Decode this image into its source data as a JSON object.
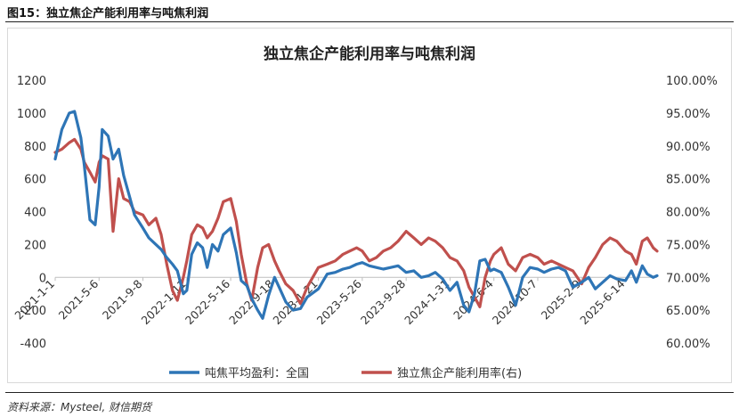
{
  "figure_title": "图15：独立焦企产能利用率与吨焦利润",
  "source_text": "资料来源：Mysteel, 财信期货",
  "chart_data": {
    "type": "line",
    "title": "独立焦企产能利用率与吨焦利润",
    "grid": false,
    "legend_position": "bottom",
    "colors": {
      "profit": "#2e75b6",
      "util": "#c0504d"
    },
    "left_axis": {
      "min": -400,
      "max": 1200,
      "tick_labels": [
        "1200",
        "1000",
        "800",
        "600",
        "400",
        "200",
        "0",
        "-200",
        "-400"
      ],
      "tick_values": [
        1200,
        1000,
        800,
        600,
        400,
        200,
        0,
        -200,
        -400
      ]
    },
    "right_axis": {
      "min": 60,
      "max": 100,
      "tick_labels": [
        "100.00%",
        "95.00%",
        "90.00%",
        "85.00%",
        "80.00%",
        "75.00%",
        "70.00%",
        "65.00%",
        "60.00%"
      ],
      "tick_values": [
        100,
        95,
        90,
        85,
        80,
        75,
        70,
        65,
        60
      ]
    },
    "x_range": [
      "2021-1-1",
      "2025-9-12"
    ],
    "x_tick_labels": [
      "2021-1-1",
      "2021-5-6",
      "2021-9-8",
      "2022-1-11",
      "2022-5-16",
      "2022-9-18",
      "2023-1-21",
      "2023-5-26",
      "2023-9-28",
      "2024-1-31",
      "2024-6-4",
      "2024-10-7",
      "2025-2-9",
      "2025-6-14"
    ],
    "series": [
      {
        "name": "吨焦平均盈利：全国",
        "axis": "left",
        "color": "#2e75b6",
        "x": [
          "2021-1-1",
          "2021-1-20",
          "2021-2-10",
          "2021-2-25",
          "2021-3-15",
          "2021-3-25",
          "2021-4-10",
          "2021-4-25",
          "2021-5-6",
          "2021-5-15",
          "2021-6-1",
          "2021-6-15",
          "2021-7-1",
          "2021-7-15",
          "2021-8-1",
          "2021-8-15",
          "2021-9-8",
          "2021-9-25",
          "2021-10-15",
          "2021-10-30",
          "2021-11-15",
          "2021-12-1",
          "2021-12-15",
          "2022-1-1",
          "2022-1-11",
          "2022-1-25",
          "2022-2-10",
          "2022-2-25",
          "2022-3-10",
          "2022-3-25",
          "2022-4-10",
          "2022-4-25",
          "2022-5-16",
          "2022-6-1",
          "2022-6-15",
          "2022-7-1",
          "2022-7-15",
          "2022-8-1",
          "2022-8-15",
          "2022-9-1",
          "2022-9-18",
          "2022-10-1",
          "2022-10-20",
          "2022-11-10",
          "2022-12-1",
          "2022-12-20",
          "2023-1-21",
          "2023-2-15",
          "2023-3-10",
          "2023-4-1",
          "2023-4-20",
          "2023-5-10",
          "2023-5-26",
          "2023-6-15",
          "2023-7-5",
          "2023-7-25",
          "2023-8-15",
          "2023-9-5",
          "2023-9-28",
          "2023-10-20",
          "2023-11-10",
          "2023-12-1",
          "2023-12-20",
          "2024-1-10",
          "2024-1-31",
          "2024-2-20",
          "2024-3-10",
          "2024-3-25",
          "2024-4-10",
          "2024-4-25",
          "2024-5-10",
          "2024-5-25",
          "2024-6-4",
          "2024-6-25",
          "2024-7-15",
          "2024-8-5",
          "2024-8-25",
          "2024-9-15",
          "2024-10-7",
          "2024-10-25",
          "2024-11-15",
          "2024-12-5",
          "2024-12-25",
          "2025-1-15",
          "2025-2-9",
          "2025-3-1",
          "2025-3-20",
          "2025-4-10",
          "2025-5-1",
          "2025-5-20",
          "2025-6-14",
          "2025-7-1",
          "2025-7-15",
          "2025-8-1",
          "2025-8-15",
          "2025-9-1",
          "2025-9-12"
        ],
        "values": [
          720,
          900,
          1000,
          1010,
          850,
          680,
          350,
          320,
          550,
          900,
          860,
          720,
          780,
          620,
          490,
          380,
          300,
          240,
          200,
          170,
          120,
          80,
          40,
          -100,
          -80,
          140,
          210,
          180,
          60,
          200,
          160,
          260,
          300,
          150,
          -20,
          -50,
          -130,
          -200,
          -250,
          -110,
          0,
          -60,
          -150,
          -200,
          -190,
          -120,
          -70,
          20,
          30,
          50,
          60,
          80,
          90,
          70,
          60,
          50,
          60,
          70,
          30,
          40,
          0,
          10,
          30,
          -10,
          -80,
          -30,
          -170,
          -210,
          -100,
          100,
          110,
          40,
          50,
          30,
          -60,
          -170,
          0,
          60,
          50,
          30,
          50,
          60,
          40,
          -60,
          -30,
          0,
          -70,
          -30,
          10,
          -10,
          -20,
          40,
          -30,
          70,
          20,
          0,
          10
        ]
      },
      {
        "name": "独立焦企产能利用率(右)",
        "axis": "right",
        "color": "#c0504d",
        "x": [
          "2021-1-1",
          "2021-1-20",
          "2021-2-10",
          "2021-2-25",
          "2021-3-15",
          "2021-3-25",
          "2021-4-10",
          "2021-4-25",
          "2021-5-6",
          "2021-5-15",
          "2021-6-1",
          "2021-6-15",
          "2021-7-1",
          "2021-7-15",
          "2021-8-1",
          "2021-8-15",
          "2021-9-8",
          "2021-9-25",
          "2021-10-15",
          "2021-10-30",
          "2021-11-15",
          "2021-12-1",
          "2021-12-15",
          "2022-1-1",
          "2022-1-11",
          "2022-1-25",
          "2022-2-10",
          "2022-2-25",
          "2022-3-10",
          "2022-3-25",
          "2022-4-10",
          "2022-4-25",
          "2022-5-16",
          "2022-6-1",
          "2022-6-15",
          "2022-7-1",
          "2022-7-15",
          "2022-8-1",
          "2022-8-15",
          "2022-9-1",
          "2022-9-18",
          "2022-10-1",
          "2022-10-20",
          "2022-11-10",
          "2022-12-1",
          "2022-12-20",
          "2023-1-21",
          "2023-2-15",
          "2023-3-10",
          "2023-4-1",
          "2023-4-20",
          "2023-5-10",
          "2023-5-26",
          "2023-6-15",
          "2023-7-5",
          "2023-7-25",
          "2023-8-15",
          "2023-9-5",
          "2023-9-28",
          "2023-10-20",
          "2023-11-10",
          "2023-12-1",
          "2023-12-20",
          "2024-1-10",
          "2024-1-31",
          "2024-2-20",
          "2024-3-10",
          "2024-3-25",
          "2024-4-10",
          "2024-4-25",
          "2024-5-10",
          "2024-5-25",
          "2024-6-4",
          "2024-6-25",
          "2024-7-15",
          "2024-8-5",
          "2024-8-25",
          "2024-9-15",
          "2024-10-7",
          "2024-10-25",
          "2024-11-15",
          "2024-12-5",
          "2024-12-25",
          "2025-1-15",
          "2025-2-9",
          "2025-3-1",
          "2025-3-20",
          "2025-4-10",
          "2025-5-1",
          "2025-5-20",
          "2025-6-14",
          "2025-7-1",
          "2025-7-15",
          "2025-8-1",
          "2025-8-15",
          "2025-9-1",
          "2025-9-12"
        ],
        "values": [
          89.0,
          89.5,
          90.5,
          91.0,
          89.5,
          87.5,
          86.0,
          84.5,
          87.5,
          88.5,
          88.0,
          77.0,
          85.0,
          82.0,
          81.5,
          80.0,
          79.5,
          78.0,
          79.0,
          76.5,
          72.0,
          68.0,
          66.5,
          70.0,
          72.5,
          76.5,
          78.0,
          77.5,
          76.0,
          77.0,
          79.0,
          81.5,
          82.0,
          78.5,
          73.5,
          69.0,
          66.5,
          71.5,
          74.5,
          75.0,
          72.5,
          71.0,
          69.0,
          68.0,
          66.0,
          68.5,
          71.5,
          72.0,
          72.5,
          73.5,
          74.0,
          74.5,
          74.0,
          72.5,
          73.0,
          74.0,
          74.5,
          75.5,
          77.0,
          76.0,
          75.0,
          76.0,
          75.5,
          74.5,
          73.0,
          72.5,
          71.0,
          68.5,
          67.0,
          65.5,
          70.0,
          72.5,
          73.5,
          74.5,
          72.0,
          71.0,
          73.0,
          73.5,
          73.0,
          72.0,
          72.5,
          72.0,
          71.5,
          71.0,
          69.0,
          71.5,
          73.0,
          75.0,
          76.0,
          75.5,
          74.0,
          73.5,
          72.0,
          75.5,
          76.0,
          74.5,
          74.0
        ]
      }
    ]
  }
}
